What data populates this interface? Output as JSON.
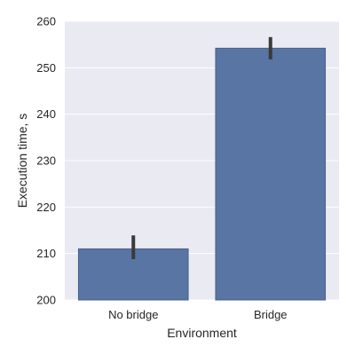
{
  "chart_data": {
    "type": "bar",
    "title": "",
    "xlabel": "Environment",
    "ylabel": "Execution time, s",
    "categories": [
      "No bridge",
      "Bridge"
    ],
    "values": [
      211,
      254.2
    ],
    "error_bars": [
      {
        "low": 208.8,
        "high": 213.9
      },
      {
        "low": 251.8,
        "high": 256.6
      }
    ],
    "ylim": [
      200,
      260
    ],
    "yticks": [
      200,
      210,
      220,
      230,
      240,
      250,
      260
    ],
    "ytick_labels": [
      "200",
      "210",
      "220",
      "230",
      "240",
      "250",
      "260"
    ],
    "grid": true,
    "colors": {
      "plot_background": "#eaeaf2",
      "grid": "#ffffff",
      "bar_fill": "#5875a4",
      "bar_edge": "#4a6088",
      "error_bar": "#3a3a3a"
    }
  }
}
